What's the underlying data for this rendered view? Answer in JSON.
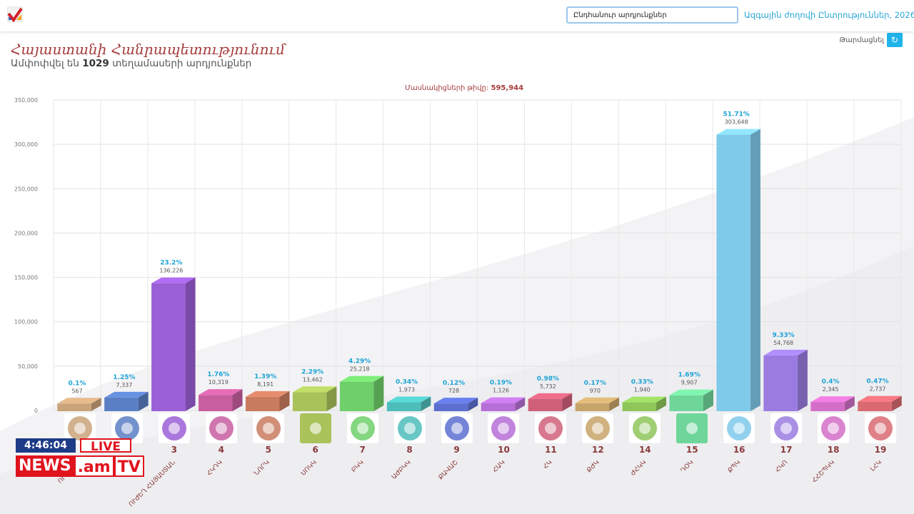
{
  "header": {
    "search_value": "Ընդհանուր արդյունքներ",
    "election_link": "Ազգային ժողովի Ընտրություններ, 2026"
  },
  "page": {
    "title": "Հայաստանի Հանրապետությունում",
    "subtitle_prefix": "Ամփոփվել են",
    "subtitle_count": "1029",
    "subtitle_suffix": "տեղամասերի արդյունքներ",
    "refresh_label": "Թարմացնել"
  },
  "participants": {
    "label": "Մասնակիցների թիվը:",
    "value": "595,944"
  },
  "news": {
    "clock": "4:46:04",
    "live": "LIVE",
    "brand_news": "NEWS",
    "brand_am": ".am",
    "brand_tv": "TV"
  },
  "colors": {
    "accent_title": "#a63c3c",
    "link": "#2aa6d6",
    "percent_label": "#1fa3d6"
  },
  "chart_data": {
    "type": "bar",
    "ylim": [
      0,
      350000
    ],
    "yticks": [
      "0",
      "50,000",
      "100,000",
      "150,000",
      "200,000",
      "250,000",
      "300,000",
      "350,000"
    ],
    "ytick_values": [
      0,
      50000,
      100000,
      150000,
      200000,
      250000,
      300000,
      350000
    ],
    "grid": true,
    "bars": [
      {
        "number": "",
        "name": "ՈՒՏԻՐՈՒ",
        "value": 567,
        "value_label": "567",
        "percent": "0.1%",
        "color": "#c9a37a"
      },
      {
        "number": "",
        "name": "",
        "value": 7337,
        "value_label": "7,337",
        "percent": "1.25%",
        "color": "#5a7fc4"
      },
      {
        "number": "3",
        "name": "ՈՒԺԵՂ ՀԱՅԱՍՏԱՆ",
        "value": 136226,
        "value_label": "136,226",
        "percent": "23.2%",
        "color": "#9b5fd6"
      },
      {
        "number": "4",
        "name": "ՀԿԴԿ",
        "value": 10319,
        "value_label": "10,319",
        "percent": "1.76%",
        "color": "#c85ea0"
      },
      {
        "number": "5",
        "name": "ՆՈՐԿ",
        "value": 8191,
        "value_label": "8,191",
        "percent": "1.39%",
        "color": "#c97b5f"
      },
      {
        "number": "6",
        "name": "ՍՈԿԿ",
        "value": 13462,
        "value_label": "13,462",
        "percent": "2.29%",
        "color": "#a9c25a"
      },
      {
        "number": "7",
        "name": "ԲԿԿ",
        "value": 25218,
        "value_label": "25,218",
        "percent": "4.29%",
        "color": "#6fcf6a"
      },
      {
        "number": "8",
        "name": "ԱԺԲԿԿ",
        "value": 1973,
        "value_label": "1,973",
        "percent": "0.34%",
        "color": "#4dbdbb"
      },
      {
        "number": "9",
        "name": "ՔԱՎԱՇ",
        "value": 728,
        "value_label": "728",
        "percent": "0.12%",
        "color": "#5c6fd0"
      },
      {
        "number": "10",
        "name": "ՀԱԿ",
        "value": 1126,
        "value_label": "1,126",
        "percent": "0.19%",
        "color": "#b66fd6"
      },
      {
        "number": "11",
        "name": "ՀԿ",
        "value": 5732,
        "value_label": "5,732",
        "percent": "0.98%",
        "color": "#d0607a"
      },
      {
        "number": "12",
        "name": "ՔԺԿ",
        "value": 970,
        "value_label": "970",
        "percent": "0.17%",
        "color": "#c7a46a"
      },
      {
        "number": "14",
        "name": "ԺՀԿԿ",
        "value": 1940,
        "value_label": "1,940",
        "percent": "0.33%",
        "color": "#8ec65a"
      },
      {
        "number": "15",
        "name": "ԴՕԿ",
        "value": 9907,
        "value_label": "9,907",
        "percent": "1.69%",
        "color": "#6fd69a"
      },
      {
        "number": "16",
        "name": "ՔՊԿ",
        "value": 303648,
        "value_label": "303,648",
        "percent": "51.71%",
        "color": "#7fc9ea"
      },
      {
        "number": "17",
        "name": "ՀԿՈ",
        "value": 54768,
        "value_label": "54,768",
        "percent": "9.33%",
        "color": "#9a7ce0"
      },
      {
        "number": "18",
        "name": "ՀՀՇՊԿԿ",
        "value": 2345,
        "value_label": "2,345",
        "percent": "0.4%",
        "color": "#d46fc8"
      },
      {
        "number": "19",
        "name": "ԼՀԿ",
        "value": 2737,
        "value_label": "2,737",
        "percent": "0.47%",
        "color": "#d96a72"
      }
    ]
  }
}
